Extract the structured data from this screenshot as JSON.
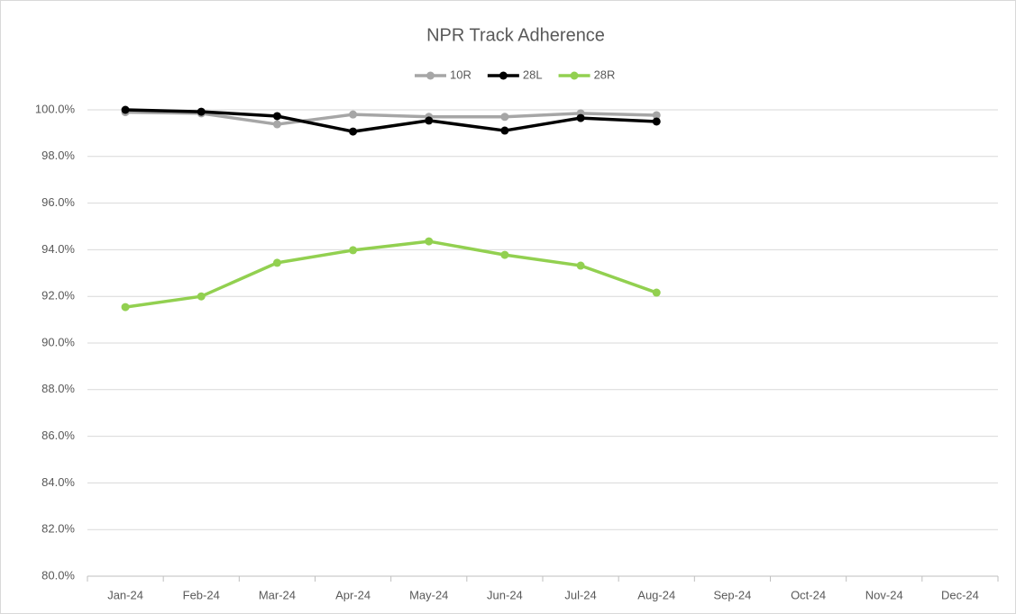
{
  "chart_data": {
    "type": "line",
    "title": "NPR Track Adherence",
    "categories": [
      "Jan-24",
      "Feb-24",
      "Mar-24",
      "Apr-24",
      "May-24",
      "Jun-24",
      "Jul-24",
      "Aug-24",
      "Sep-24",
      "Oct-24",
      "Nov-24",
      "Dec-24"
    ],
    "series": [
      {
        "name": "10R",
        "color": "#a6a6a6",
        "values": [
          99.9,
          99.85,
          99.38,
          99.8,
          99.7,
          99.7,
          99.85,
          99.77,
          null,
          null,
          null,
          null
        ]
      },
      {
        "name": "28L",
        "color": "#000000",
        "values": [
          100.0,
          99.92,
          99.73,
          99.07,
          99.54,
          99.11,
          99.65,
          99.5,
          null,
          null,
          null,
          null
        ]
      },
      {
        "name": "28R",
        "color": "#92d050",
        "values": [
          91.54,
          92.0,
          93.44,
          93.98,
          94.36,
          93.78,
          93.32,
          92.16,
          null,
          null,
          null,
          null
        ]
      }
    ],
    "ylim": [
      80,
      100
    ],
    "yticks": [
      {
        "value": 80,
        "label": "80.0%"
      },
      {
        "value": 82,
        "label": "82.0%"
      },
      {
        "value": 84,
        "label": "84.0%"
      },
      {
        "value": 86,
        "label": "86.0%"
      },
      {
        "value": 88,
        "label": "88.0%"
      },
      {
        "value": 90,
        "label": "90.0%"
      },
      {
        "value": 92,
        "label": "92.0%"
      },
      {
        "value": 94,
        "label": "94.0%"
      },
      {
        "value": 96,
        "label": "96.0%"
      },
      {
        "value": 98,
        "label": "98.0%"
      },
      {
        "value": 100,
        "label": "100.0%"
      }
    ],
    "grid": true,
    "legend": "top"
  }
}
